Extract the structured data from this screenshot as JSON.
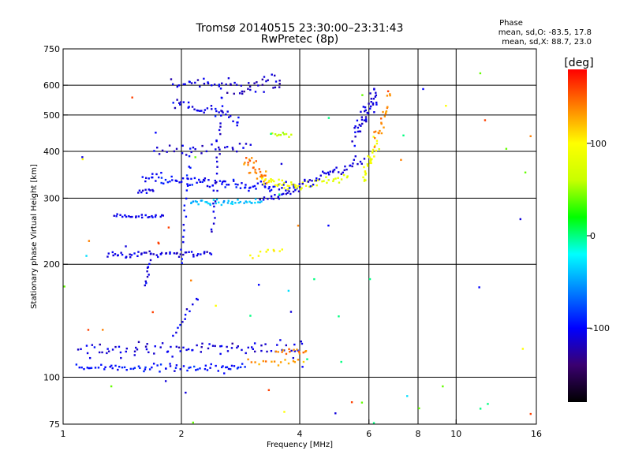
{
  "chart_data": {
    "type": "scatter",
    "title": "Tromsø 20140515 23:30:00–23:31:43",
    "subtitle": "RwPretec (8p)",
    "phase_info": {
      "heading": "Phase",
      "line_o": "mean, sd,O: -83.5, 17.8",
      "line_x": "mean, sd,X: 88.7, 23.0"
    },
    "xlabel": "Frequency [MHz]",
    "ylabel": "Stationary phase Virtual Height [km]",
    "x_scale": "log",
    "y_scale": "log",
    "xlim": [
      1,
      16
    ],
    "ylim": [
      75,
      750
    ],
    "x_ticks": [
      {
        "value": 1,
        "label": "1"
      },
      {
        "value": 2,
        "label": "2"
      },
      {
        "value": 4,
        "label": "4"
      },
      {
        "value": 6,
        "label": "6"
      },
      {
        "value": 8,
        "label": "8"
      },
      {
        "value": 10,
        "label": "10"
      },
      {
        "value": 16,
        "label": "16"
      }
    ],
    "y_ticks": [
      {
        "value": 75,
        "label": "75"
      },
      {
        "value": 100,
        "label": "100"
      },
      {
        "value": 200,
        "label": "200"
      },
      {
        "value": 300,
        "label": "300"
      },
      {
        "value": 400,
        "label": "400"
      },
      {
        "value": 500,
        "label": "500"
      },
      {
        "value": 600,
        "label": "600"
      },
      {
        "value": 750,
        "label": "750"
      }
    ],
    "x_gridlines": [
      2,
      4,
      6,
      8,
      10
    ],
    "y_gridlines": [
      100,
      200,
      300,
      400,
      500,
      600
    ],
    "grid": true,
    "colorbar": {
      "unit_label": "[deg]",
      "range": [
        -180,
        180
      ],
      "ticks": [
        {
          "value": 100,
          "label": "100"
        },
        {
          "value": 0,
          "label": "0"
        },
        {
          "value": -100,
          "label": "-100"
        }
      ],
      "colors": [
        "#000000",
        "#3a0070",
        "#0000ff",
        "#0080ff",
        "#00ffff",
        "#00ff00",
        "#c8ff00",
        "#ffff00",
        "#ff8000",
        "#ff0000"
      ]
    },
    "traces": [
      {
        "name": "",
        "phase": -95,
        "x_range": [
          1.08,
          2.9
        ],
        "y_start": 106,
        "y_end": 106,
        "n": 70,
        "x_jitter": 0.01,
        "y_jitter": 0.02
      },
      {
        "name": "",
        "phase": -110,
        "x_range": [
          1.1,
          4.1
        ],
        "y_start": 118,
        "y_end": 120,
        "n": 85,
        "x_jitter": 0.015,
        "y_jitter": 0.035
      },
      {
        "name": "",
        "phase": 130,
        "x_range": [
          2.95,
          4.1
        ],
        "y_start": 110,
        "y_end": 110,
        "n": 16,
        "x_jitter": 0.01,
        "y_jitter": 0.015
      },
      {
        "name": "",
        "phase": 140,
        "x_range": [
          3.5,
          4.2
        ],
        "y_start": 117,
        "y_end": 117,
        "n": 14,
        "x_jitter": 0.01,
        "y_jitter": 0.02
      },
      {
        "name": "",
        "phase": -110,
        "x_range": [
          1.3,
          2.4
        ],
        "y_start": 212,
        "y_end": 213,
        "n": 55,
        "x_jitter": 0.01,
        "y_jitter": 0.015
      },
      {
        "name": "",
        "phase": -105,
        "x_range": [
          1.35,
          1.8
        ],
        "y_start": 268,
        "y_end": 268,
        "n": 25,
        "x_jitter": 0.008,
        "y_jitter": 0.01
      },
      {
        "name": "",
        "phase": -110,
        "x_range": [
          1.55,
          1.7
        ],
        "y_start": 312,
        "y_end": 313,
        "n": 10,
        "x_jitter": 0.005,
        "y_jitter": 0.01
      },
      {
        "name": "",
        "phase": -100,
        "x_range": [
          1.6,
          3.95
        ],
        "y_start": 340,
        "y_end": 318,
        "n": 95,
        "x_jitter": 0.012,
        "y_jitter": 0.03
      },
      {
        "name": "",
        "phase": -40,
        "x_range": [
          2.1,
          3.2
        ],
        "y_start": 292,
        "y_end": 292,
        "n": 40,
        "x_jitter": 0.01,
        "y_jitter": 0.015
      },
      {
        "name": "",
        "phase": -110,
        "x_range": [
          3.2,
          4.0
        ],
        "y_start": 298,
        "y_end": 316,
        "n": 20,
        "x_jitter": 0.008,
        "y_jitter": 0.012
      },
      {
        "name": "",
        "phase": 140,
        "x_range": [
          2.9,
          3.3
        ],
        "y_start": 380,
        "y_end": 340,
        "n": 30,
        "x_jitter": 0.01,
        "y_jitter": 0.04
      },
      {
        "name": "",
        "phase": 95,
        "x_range": [
          3.2,
          4.0
        ],
        "y_start": 340,
        "y_end": 322,
        "n": 30,
        "x_jitter": 0.01,
        "y_jitter": 0.03
      },
      {
        "name": "",
        "phase": 60,
        "x_range": [
          3.4,
          3.8
        ],
        "y_start": 450,
        "y_end": 440,
        "n": 10,
        "x_jitter": 0.008,
        "y_jitter": 0.015
      },
      {
        "name": "",
        "phase": 80,
        "x_range": [
          4.0,
          5.3
        ],
        "y_start": 322,
        "y_end": 340,
        "n": 25,
        "x_jitter": 0.008,
        "y_jitter": 0.03
      },
      {
        "name": "",
        "phase": -110,
        "x_range": [
          4.0,
          5.8
        ],
        "y_start": 322,
        "y_end": 380,
        "n": 40,
        "x_jitter": 0.008,
        "y_jitter": 0.03
      },
      {
        "name": "",
        "phase": -110,
        "x_range": [
          5.5,
          6.3
        ],
        "y_start": 440,
        "y_end": 580,
        "n": 45,
        "x_jitter": 0.01,
        "y_jitter": 0.06
      },
      {
        "name": "",
        "phase": 90,
        "x_range": [
          5.8,
          6.3
        ],
        "y_start": 340,
        "y_end": 420,
        "n": 30,
        "x_jitter": 0.01,
        "y_jitter": 0.05
      },
      {
        "name": "",
        "phase": 135,
        "x_range": [
          6.2,
          6.8
        ],
        "y_start": 420,
        "y_end": 560,
        "n": 22,
        "x_jitter": 0.01,
        "y_jitter": 0.05
      },
      {
        "name": "",
        "phase": -105,
        "x_range": [
          1.9,
          2.8
        ],
        "y_start": 545,
        "y_end": 485,
        "n": 35,
        "x_jitter": 0.01,
        "y_jitter": 0.03
      },
      {
        "name": "",
        "phase": -110,
        "x_range": [
          1.9,
          2.5
        ],
        "y_start": 615,
        "y_end": 600,
        "n": 20,
        "x_jitter": 0.01,
        "y_jitter": 0.03
      },
      {
        "name": "",
        "phase": -115,
        "x_range": [
          2.6,
          3.6
        ],
        "y_start": 595,
        "y_end": 615,
        "n": 35,
        "x_jitter": 0.012,
        "y_jitter": 0.05
      },
      {
        "name": "",
        "phase": -110,
        "x_range": [
          1.7,
          3.0
        ],
        "y_start": 403,
        "y_end": 410,
        "n": 30,
        "x_jitter": 0.012,
        "y_jitter": 0.03
      },
      {
        "name": "",
        "phase": -110,
        "x_range": [
          2.4,
          2.55
        ],
        "y_start": 240,
        "y_end": 600,
        "n": 30,
        "x_jitter": 0.01,
        "y_jitter": 0.02
      },
      {
        "name": "",
        "phase": -100,
        "x_range": [
          2.0,
          2.1
        ],
        "y_start": 200,
        "y_end": 400,
        "n": 18,
        "x_jitter": 0.01,
        "y_jitter": 0.02
      },
      {
        "name": "",
        "phase": -110,
        "x_range": [
          1.62,
          1.66
        ],
        "y_start": 175,
        "y_end": 205,
        "n": 10,
        "x_jitter": 0.008,
        "y_jitter": 0.01
      },
      {
        "name": "",
        "phase": -105,
        "x_range": [
          1.9,
          2.2
        ],
        "y_start": 130,
        "y_end": 160,
        "n": 12,
        "x_jitter": 0.01,
        "y_jitter": 0.02
      },
      {
        "name": "",
        "phase": 100,
        "x_range": [
          3.0,
          3.6
        ],
        "y_start": 210,
        "y_end": 218,
        "n": 10,
        "x_jitter": 0.01,
        "y_jitter": 0.02
      }
    ],
    "scattered_points": {
      "n": 70,
      "x_range": [
        1.0,
        15.5
      ],
      "y_range": [
        75,
        650
      ],
      "phases": [
        -110,
        -100,
        -30,
        0,
        40,
        100,
        140,
        160
      ]
    }
  }
}
